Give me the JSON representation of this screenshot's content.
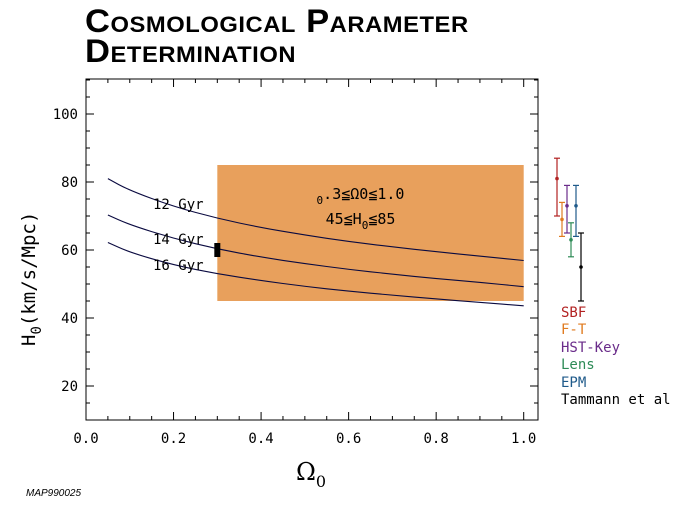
{
  "title": {
    "line1": "Cosmological Parameter",
    "line2": "Determination"
  },
  "credit": "MAP990025",
  "chart_data": {
    "type": "line",
    "title": "Cosmological Parameter Determination",
    "xlabel": "Ω0",
    "ylabel": "H0(km/s/Mpc)",
    "xlim": [
      0.0,
      1.05
    ],
    "ylim": [
      10,
      112
    ],
    "x_ticks": [
      0.0,
      0.2,
      0.4,
      0.6,
      0.8,
      1.0
    ],
    "x_tick_labels": [
      "0.0",
      "0.2",
      "0.4",
      "0.6",
      "0.8",
      "1.0"
    ],
    "y_ticks": [
      20,
      40,
      60,
      80,
      100
    ],
    "y_tick_labels": [
      "20",
      "40",
      "60",
      "80",
      "100"
    ],
    "region": {
      "omega_range": [
        0.3,
        1.0
      ],
      "h0_range": [
        45,
        85
      ],
      "label_line1": "0.3≦Ω0≦1.0",
      "label_line2": "45≦H0≦85",
      "color": "#e8a05c"
    },
    "marker": {
      "omega": 0.3,
      "h0": 60,
      "color": "#000000"
    },
    "series": [
      {
        "name": "12 Gyr",
        "x": [
          0.05,
          0.1,
          0.2,
          0.3,
          0.4,
          0.5,
          0.6,
          0.7,
          0.8,
          0.9,
          1.0
        ],
        "y": [
          81,
          77.5,
          72.8,
          69.3,
          66.6,
          64.4,
          62.5,
          60.9,
          59.5,
          58.2,
          56.9
        ]
      },
      {
        "name": "14 Gyr",
        "x": [
          0.05,
          0.1,
          0.2,
          0.3,
          0.4,
          0.5,
          0.6,
          0.7,
          0.8,
          0.9,
          1.0
        ],
        "y": [
          70.3,
          67.4,
          63.4,
          60.3,
          57.9,
          56.0,
          54.3,
          52.9,
          51.6,
          50.5,
          49.2
        ]
      },
      {
        "name": "16 Gyr",
        "x": [
          0.05,
          0.1,
          0.2,
          0.3,
          0.4,
          0.5,
          0.6,
          0.7,
          0.8,
          0.9,
          1.0
        ],
        "y": [
          62.2,
          59.3,
          55.6,
          53.0,
          51.0,
          49.3,
          47.9,
          46.7,
          45.6,
          44.6,
          43.6
        ]
      }
    ],
    "measurements": [
      {
        "name": "SBF",
        "color": "#b22222",
        "h0": 81,
        "low": 70,
        "high": 87
      },
      {
        "name": "F-T",
        "color": "#e07b20",
        "h0": 69,
        "low": 64,
        "high": 74
      },
      {
        "name": "HST-Key",
        "color": "#6a2c8a",
        "h0": 73,
        "low": 65,
        "high": 79
      },
      {
        "name": "Lens",
        "color": "#2e8b57",
        "h0": 63,
        "low": 58,
        "high": 68
      },
      {
        "name": "EPM",
        "color": "#1f5a8a",
        "h0": 73,
        "low": 64,
        "high": 79
      },
      {
        "name": "Tammann et al",
        "color": "#000000",
        "h0": 55,
        "low": 45,
        "high": 65
      }
    ]
  }
}
